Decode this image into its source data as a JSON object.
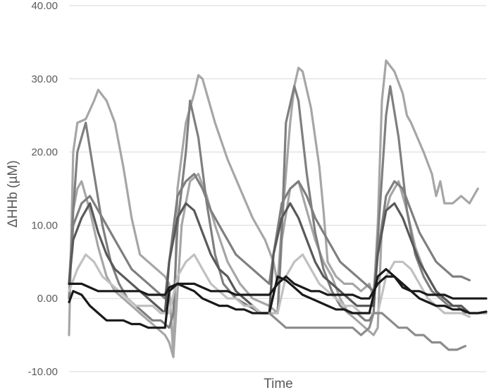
{
  "chart_data": {
    "type": "line",
    "title": "",
    "xlabel": "Time",
    "ylabel": "ΔHHb (µM)",
    "ylim": [
      -10,
      40
    ],
    "yticks": [
      -10,
      0,
      10,
      20,
      30,
      40
    ],
    "ytick_labels": [
      "-10.00",
      "0.00",
      "10.00",
      "20.00",
      "30.00",
      "40.00"
    ],
    "xlim": [
      0,
      100
    ],
    "grid": "horizontal",
    "legend": "none",
    "series": [
      {
        "color": "#a6a6a6",
        "x": [
          0,
          1,
          2,
          4,
          6,
          7,
          9,
          11,
          13,
          15,
          17,
          19,
          21,
          23,
          24,
          25,
          26,
          28,
          30,
          31,
          32,
          35,
          38,
          41,
          44,
          47,
          49,
          50,
          51,
          53,
          54,
          55,
          56,
          58,
          60,
          61,
          62,
          64,
          66,
          68,
          70,
          72,
          73,
          74,
          75,
          76,
          78,
          80,
          81,
          82,
          85,
          87,
          88,
          89,
          90,
          92,
          94,
          96,
          98
        ],
        "y": [
          -5,
          20,
          24,
          24.5,
          27,
          28.5,
          27,
          24,
          18,
          11,
          6,
          5,
          4,
          3,
          2,
          -8,
          15,
          24,
          28,
          30.5,
          30,
          24,
          19,
          15,
          11,
          8,
          5,
          2,
          10,
          24,
          29,
          31.5,
          31,
          26,
          18,
          12,
          5,
          3,
          2,
          2,
          1,
          2,
          0,
          10,
          27,
          32.5,
          31,
          28,
          25,
          24,
          20,
          17,
          14,
          16,
          13,
          13,
          14,
          13,
          15
        ]
      },
      {
        "color": "#a6a6a6",
        "x": [
          0,
          1,
          2,
          3,
          5,
          7,
          9,
          11,
          13,
          15,
          17,
          19,
          21,
          23,
          24,
          25,
          27,
          29,
          31,
          33,
          35,
          38,
          41,
          44,
          48,
          50,
          51,
          53,
          55,
          57,
          59,
          61,
          63,
          65,
          67,
          69,
          71,
          73,
          74,
          75,
          77,
          79,
          81,
          83,
          85,
          87,
          89,
          90,
          92,
          94,
          96,
          98,
          100
        ],
        "y": [
          2,
          12,
          15,
          16,
          12,
          7,
          3,
          1,
          0,
          -1,
          -2,
          -3,
          -4,
          -5,
          -6,
          -8,
          10,
          16,
          17,
          14,
          10,
          5,
          2,
          0,
          -1,
          -2,
          8,
          15,
          16,
          12,
          8,
          5,
          3,
          0,
          -2,
          -3,
          -4,
          -5,
          -4,
          10,
          14,
          16,
          12,
          7,
          4,
          2,
          0,
          0,
          -1,
          -1,
          -2,
          -2,
          -2
        ]
      },
      {
        "color": "#7f7f7f",
        "x": [
          0,
          1,
          2,
          4,
          6,
          8,
          10,
          12,
          14,
          16,
          18,
          20,
          22,
          24,
          25,
          26,
          28,
          29,
          31,
          33,
          35,
          37,
          40,
          43,
          46,
          48,
          50,
          51,
          52,
          54,
          55,
          57,
          59,
          61,
          63,
          65,
          67,
          69,
          71,
          72,
          73,
          74,
          76,
          77,
          79,
          81,
          83,
          85,
          87,
          89,
          91,
          93,
          95
        ],
        "y": [
          0,
          12,
          20,
          24,
          17,
          10,
          5,
          2,
          0,
          -1,
          -2,
          -3,
          -3,
          -4,
          -2,
          10,
          20,
          27,
          22,
          13,
          6,
          2,
          0,
          -1,
          -2,
          -2,
          -2,
          9,
          24,
          29,
          27,
          17,
          9,
          4,
          1,
          -1,
          -2,
          -2,
          -3,
          -3,
          -2,
          8,
          25,
          29,
          22,
          12,
          6,
          3,
          1,
          0,
          -1,
          -1,
          -2
        ]
      },
      {
        "color": "#7f7f7f",
        "x": [
          0,
          1,
          3,
          5,
          7,
          9,
          11,
          13,
          15,
          17,
          19,
          21,
          23,
          24,
          26,
          28,
          30,
          32,
          34,
          36,
          38,
          40,
          42,
          44,
          46,
          48,
          49,
          51,
          53,
          55,
          57,
          59,
          61,
          63,
          65,
          67,
          69,
          71,
          73,
          74,
          76,
          78,
          80,
          82,
          84,
          86,
          88,
          90,
          92,
          94,
          96
        ],
        "y": [
          2,
          10,
          13,
          14,
          12,
          10,
          8,
          6,
          4,
          3,
          2,
          1,
          0,
          5,
          14,
          16,
          17,
          15,
          12,
          10,
          8,
          6,
          5,
          4,
          3,
          2,
          6,
          13,
          15,
          16,
          14,
          11,
          9,
          7,
          5,
          4,
          3,
          2,
          1,
          6,
          14,
          16,
          15,
          12,
          9,
          7,
          5,
          4,
          3,
          3,
          2.5
        ]
      },
      {
        "color": "#595959",
        "x": [
          0,
          1,
          3,
          5,
          7,
          9,
          11,
          13,
          15,
          17,
          19,
          21,
          23,
          24,
          26,
          28,
          30,
          32,
          34,
          36,
          38,
          40,
          42,
          44,
          46,
          48,
          49,
          51,
          53,
          55,
          57,
          59,
          61,
          63,
          65,
          67,
          69,
          71,
          73,
          74,
          76,
          78,
          80,
          82,
          84,
          86,
          88,
          90,
          92,
          94,
          96
        ],
        "y": [
          2,
          8,
          11,
          13,
          9,
          6,
          4,
          3,
          2,
          1,
          0,
          -1,
          -2,
          5,
          11,
          13,
          12,
          9,
          6,
          4,
          3,
          1,
          0,
          -1,
          -2,
          -2,
          6,
          11,
          13,
          11,
          8,
          5,
          3,
          2,
          1,
          0,
          -1,
          -1,
          -1,
          6,
          12,
          13,
          11,
          8,
          5,
          3,
          1,
          0,
          -1,
          -1,
          -2
        ]
      },
      {
        "color": "#c0c0c0",
        "x": [
          0,
          2,
          4,
          6,
          8,
          10,
          12,
          14,
          16,
          18,
          20,
          22,
          24,
          26,
          28,
          30,
          32,
          34,
          36,
          38,
          40,
          42,
          44,
          46,
          48,
          50,
          52,
          54,
          56,
          58,
          60,
          62,
          64,
          66,
          68,
          70,
          72,
          74,
          76,
          78,
          80,
          82,
          84,
          86,
          88,
          90,
          92,
          94,
          96
        ],
        "y": [
          1,
          4,
          6,
          5,
          3,
          2,
          1,
          0,
          -1,
          -1,
          -1,
          -2,
          -2,
          3,
          5,
          6,
          4,
          2,
          1,
          0,
          0,
          -1,
          -1,
          -2,
          -2,
          -2,
          3,
          5,
          6,
          4,
          2,
          1,
          0,
          -1,
          -1,
          -2,
          -2,
          -2,
          3,
          5,
          5,
          4,
          2,
          0,
          -1,
          -2,
          -2,
          -2,
          -2.5
        ]
      },
      {
        "color": "#1a1a1a",
        "x": [
          0,
          1,
          3,
          5,
          7,
          9,
          11,
          13,
          15,
          17,
          19,
          21,
          23,
          24,
          26,
          28,
          30,
          32,
          34,
          36,
          38,
          40,
          42,
          44,
          46,
          48,
          50,
          52,
          54,
          56,
          58,
          60,
          62,
          64,
          66,
          68,
          70,
          72,
          74,
          76,
          78,
          80,
          82,
          84,
          86,
          88,
          90,
          92,
          94,
          96,
          98,
          100
        ],
        "y": [
          2,
          2,
          2,
          1.5,
          1,
          1,
          1,
          1,
          1,
          1,
          0.5,
          0.5,
          0.5,
          1.5,
          2,
          2,
          2,
          1.5,
          1,
          1,
          1,
          0.5,
          0.5,
          0.5,
          0.5,
          0.5,
          2,
          3,
          2,
          1.5,
          1,
          1,
          0.5,
          0.5,
          0.5,
          0.5,
          0,
          0,
          2,
          3,
          3,
          1.5,
          1,
          1,
          0.5,
          0.5,
          0.5,
          0,
          0,
          0,
          0,
          0
        ]
      },
      {
        "color": "#1a1a1a",
        "x": [
          0,
          1,
          3,
          5,
          7,
          9,
          11,
          13,
          15,
          17,
          19,
          21,
          23,
          24,
          26,
          28,
          30,
          32,
          34,
          36,
          38,
          40,
          42,
          44,
          46,
          48,
          50,
          52,
          54,
          56,
          58,
          60,
          62,
          64,
          66,
          68,
          70,
          72,
          74,
          76,
          78,
          80,
          82,
          84,
          86,
          88,
          90,
          92,
          94,
          96,
          98,
          100
        ],
        "y": [
          -0.5,
          1,
          0.5,
          -1,
          -2,
          -3,
          -3,
          -3,
          -3.5,
          -3.5,
          -4,
          -4,
          -4,
          1,
          2,
          1.5,
          1,
          0,
          -0.5,
          -1,
          -1,
          -1.5,
          -1.5,
          -2,
          -2,
          -2,
          3,
          2.5,
          1.5,
          0.5,
          0,
          -0.5,
          -1,
          -1.5,
          -1.5,
          -2,
          -2,
          -2,
          3,
          4,
          3,
          2,
          1,
          0,
          -0.5,
          -1,
          -1,
          -1.5,
          -1.5,
          -2,
          -2,
          -1.8
        ]
      },
      {
        "color": "#8c8c8c",
        "x": [
          48,
          50,
          52,
          54,
          56,
          58,
          60,
          62,
          64,
          66,
          68,
          70,
          72,
          73,
          75,
          77,
          79,
          81,
          83,
          85,
          87,
          89,
          91,
          93,
          95
        ],
        "y": [
          -2,
          -3,
          -4,
          -4,
          -4,
          -4,
          -4,
          -4,
          -4,
          -4,
          -4,
          -5,
          -4,
          -2,
          -2,
          -3,
          -4,
          -4,
          -5,
          -5,
          -6,
          -6,
          -7,
          -7,
          -6.5
        ]
      }
    ]
  }
}
